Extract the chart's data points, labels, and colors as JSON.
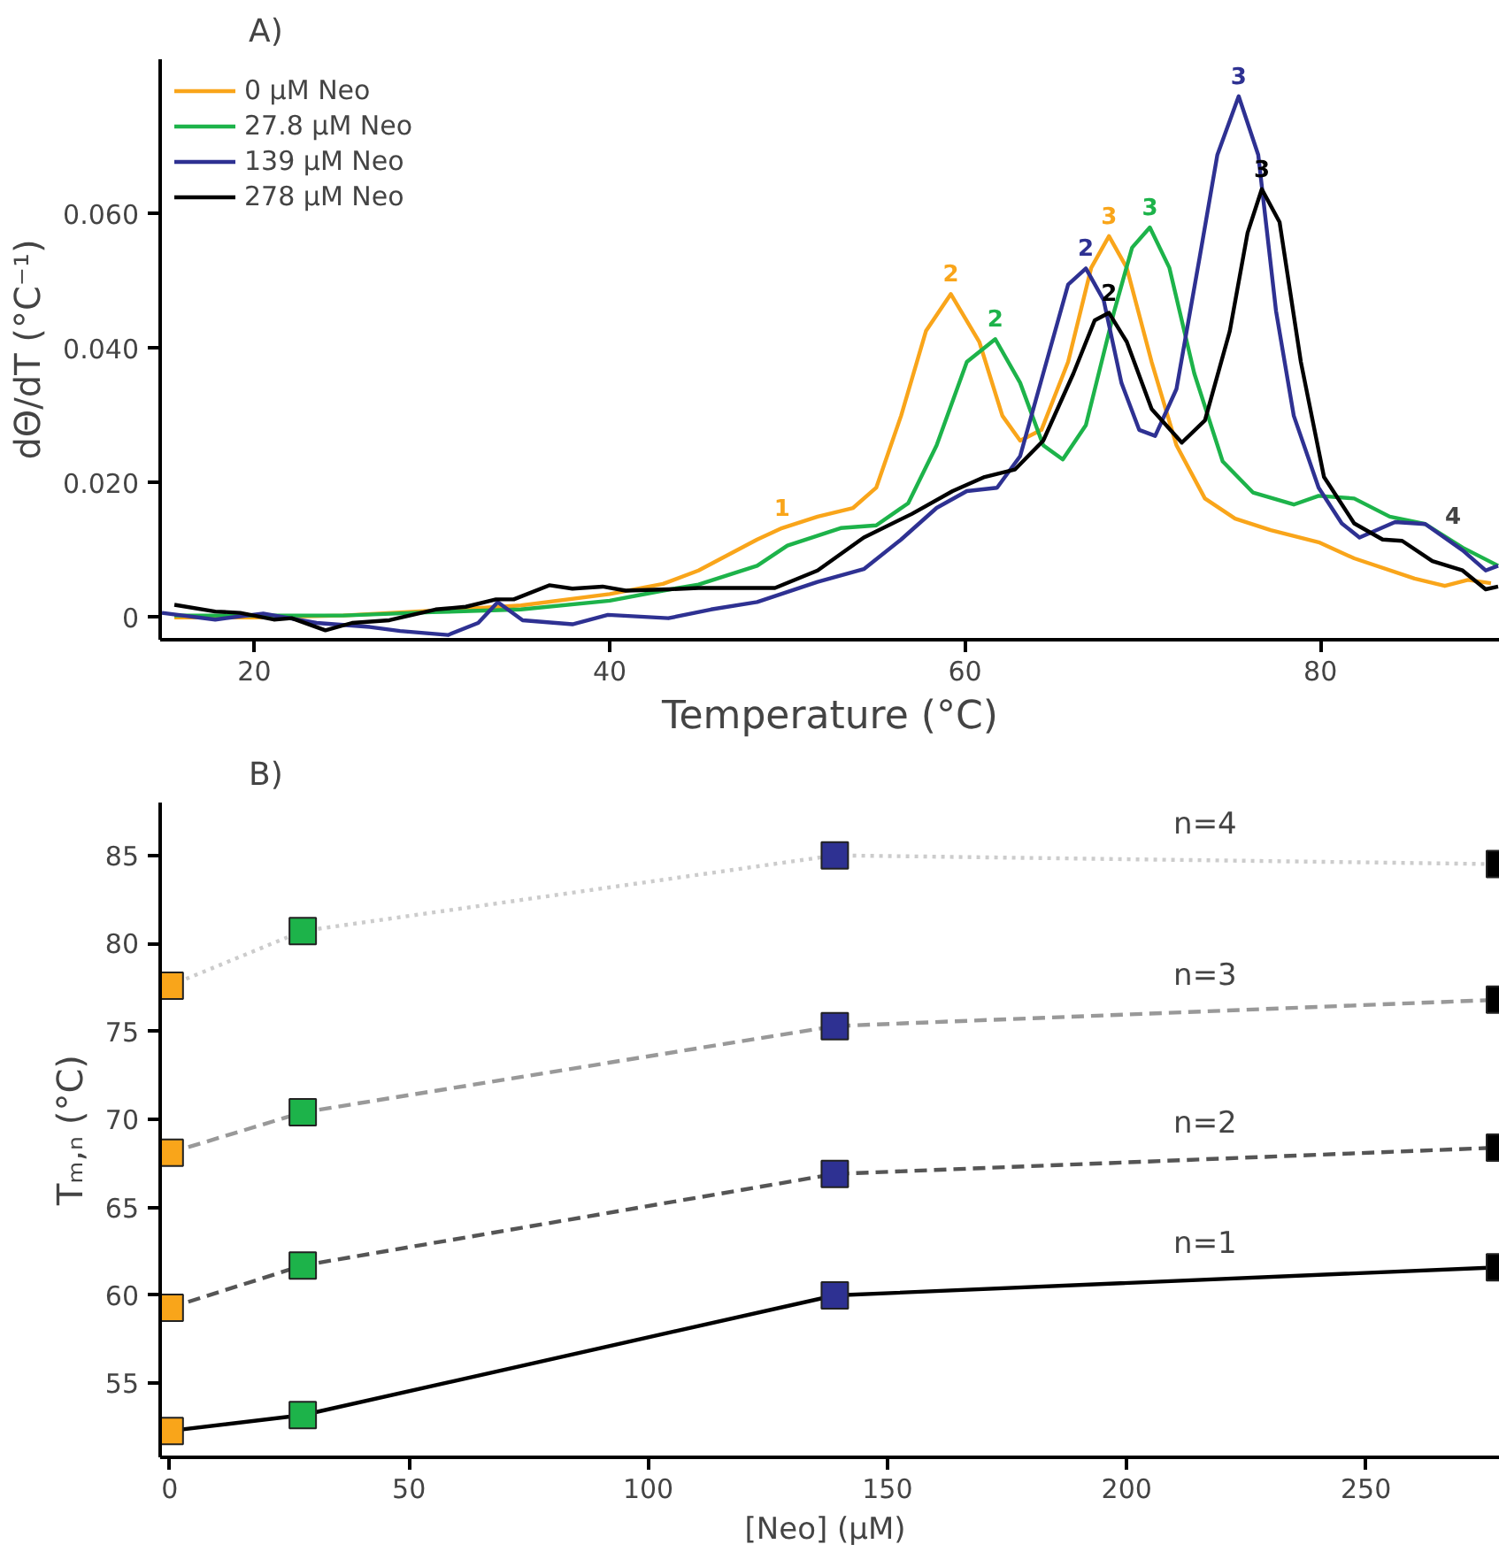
{
  "chart_data": [
    {
      "type": "line",
      "title": "A)",
      "xlabel": "Temperature (°C)",
      "ylabel": "dΘ/dT (°C⁻¹)",
      "xlim": [
        14.7,
        90.1
      ],
      "ylim": [
        -0.0033,
        0.083
      ],
      "xticks": [
        20,
        40,
        60,
        80
      ],
      "yticks": [
        0,
        {
          "value": 0.02,
          "label": "0.020"
        },
        {
          "value": 0.04,
          "label": "0.040"
        },
        {
          "value": 0.06,
          "label": "0.060"
        }
      ],
      "grid": false,
      "legend": "top left",
      "marker": "none",
      "line_style": "solid",
      "annotations": [
        "4",
        {
          "text": "1",
          "x": 49.7,
          "y": 0.0133
        },
        {
          "text": "2",
          "x": 59.2,
          "y": 0.0481
        },
        {
          "text": "3",
          "x": 68.1,
          "y": 0.0567
        },
        {
          "text": "2",
          "x": 61.7,
          "y": 0.0414
        },
        {
          "text": "3",
          "x": 70.4,
          "y": 0.058
        },
        {
          "text": "2",
          "x": 66.8,
          "y": 0.0519
        },
        {
          "text": "3",
          "x": 75.4,
          "y": 0.0775
        },
        {
          "text": "2",
          "x": 68.1,
          "y": 0.0453
        },
        {
          "text": "3",
          "x": 76.7,
          "y": 0.0637
        }
      ],
      "series": [
        {
          "name": "0 μM Neo",
          "color": "#f9a51a",
          "x": [
            15.5,
            20,
            25,
            30,
            35,
            40,
            43,
            45,
            48.3,
            49.7,
            51.7,
            53.7,
            55,
            56.4,
            57.8,
            59.2,
            60.8,
            62.1,
            63.1,
            64.3,
            65.8,
            67.1,
            68.1,
            69.1,
            70.5,
            71.9,
            73.5,
            75.2,
            77.2,
            79.9,
            81.9,
            85.3,
            87.0,
            88.3,
            89.6
          ],
          "values": [
            0,
            0,
            0.0003,
            0.001,
            0.0018,
            0.0035,
            0.005,
            0.007,
            0.0116,
            0.0133,
            0.015,
            0.0163,
            0.0193,
            0.03,
            0.0426,
            0.0481,
            0.041,
            0.03,
            0.0263,
            0.0279,
            0.038,
            0.052,
            0.0567,
            0.052,
            0.038,
            0.0256,
            0.0177,
            0.0147,
            0.013,
            0.0112,
            0.0088,
            0.0058,
            0.0047,
            0.0056,
            0.0051
          ]
        },
        {
          "name": "27.8 μM Neo",
          "color": "#1db34a",
          "x": [
            15.5,
            20,
            25,
            30,
            35,
            40,
            43,
            45,
            48.3,
            50,
            53,
            55,
            56.8,
            58.4,
            60.1,
            61.7,
            63.1,
            64.4,
            65.5,
            66.8,
            68.4,
            69.4,
            70.4,
            71.5,
            72.9,
            74.5,
            76.2,
            78.5,
            79.9,
            81.9,
            83.9,
            85.9,
            88.0,
            90.0
          ],
          "values": [
            0.0003,
            0.0003,
            0.0003,
            0.0008,
            0.0012,
            0.0025,
            0.004,
            0.0049,
            0.0077,
            0.0107,
            0.0133,
            0.0137,
            0.017,
            0.0256,
            0.038,
            0.0414,
            0.0349,
            0.0256,
            0.0235,
            0.0286,
            0.0456,
            0.055,
            0.058,
            0.052,
            0.0363,
            0.0232,
            0.0186,
            0.0168,
            0.0181,
            0.0177,
            0.015,
            0.0139,
            0.0104,
            0.0077
          ]
        },
        {
          "name": "139 μM Neo",
          "color": "#2e3192",
          "x": [
            14.8,
            17.8,
            20.5,
            23.5,
            26.5,
            28.2,
            30.9,
            32.6,
            33.7,
            35.1,
            37.9,
            39.9,
            43.3,
            45.7,
            48.3,
            51.7,
            54.3,
            56.4,
            58.4,
            60.1,
            61.8,
            63.1,
            64.4,
            65.8,
            66.8,
            67.8,
            68.8,
            69.8,
            70.7,
            71.9,
            73.2,
            74.2,
            75.4,
            76.5,
            77.5,
            78.5,
            79.9,
            81.2,
            82.2,
            84.2,
            85.9,
            88.0,
            89.3,
            90.0
          ],
          "values": [
            0.0007,
            -0.0003,
            0.0006,
            -0.0008,
            -0.0014,
            -0.002,
            -0.0026,
            -0.0008,
            0.0023,
            -0.0004,
            -0.001,
            0.0004,
            -0.0001,
            0.0012,
            0.0023,
            0.0053,
            0.0072,
            0.0116,
            0.0163,
            0.0188,
            0.0193,
            0.024,
            0.0363,
            0.0495,
            0.0519,
            0.0472,
            0.0349,
            0.0279,
            0.027,
            0.034,
            0.0535,
            0.0688,
            0.0775,
            0.0688,
            0.0456,
            0.03,
            0.0193,
            0.014,
            0.0119,
            0.0142,
            0.0139,
            0.01,
            0.007,
            0.0077
          ]
        },
        {
          "name": "278 μM Neo",
          "color": "#000000",
          "x": [
            15.5,
            17.8,
            19.2,
            21.1,
            22.1,
            24,
            25.5,
            27.6,
            30.2,
            31.9,
            33.6,
            34.6,
            36.6,
            37.9,
            39.6,
            40.9,
            43.3,
            45,
            49.3,
            51.7,
            54.3,
            57.0,
            59.3,
            61.1,
            62.8,
            64.4,
            66.1,
            67.3,
            68.1,
            69.1,
            70.5,
            72.2,
            73.5,
            74.9,
            75.9,
            76.7,
            77.7,
            78.9,
            80.2,
            81.9,
            83.5,
            84.6,
            86.3,
            88,
            89.3,
            90
          ],
          "values": [
            0.0019,
            0.0009,
            0.0007,
            -0.0003,
            -0.0001,
            -0.0019,
            -0.0008,
            -0.0004,
            0.0012,
            0.0016,
            0.0027,
            0.0027,
            0.0048,
            0.0043,
            0.0046,
            0.004,
            0.0042,
            0.0044,
            0.0044,
            0.007,
            0.0119,
            0.0154,
            0.0188,
            0.0209,
            0.022,
            0.0263,
            0.0363,
            0.0442,
            0.0453,
            0.041,
            0.031,
            0.026,
            0.0293,
            0.0426,
            0.0572,
            0.0637,
            0.0588,
            0.038,
            0.0209,
            0.014,
            0.0116,
            0.0114,
            0.0084,
            0.007,
            0.0042,
            0.0046
          ]
        }
      ]
    },
    {
      "type": "line",
      "title": "B)",
      "xlabel": "[Neo]  (μM)",
      "ylabel": "Tₘ,ₙ (°C)",
      "xlim": [
        -2,
        278
      ],
      "ylim": [
        50.8,
        88
      ],
      "xticks": [
        0,
        50,
        100,
        150,
        200,
        250
      ],
      "yticks": [
        55,
        60,
        65,
        70,
        75,
        80,
        85
      ],
      "grid": false,
      "legend": false,
      "marker": "square",
      "series": [
        {
          "name": "n=1",
          "color": "#000000",
          "line_style": "solid",
          "x": [
            0,
            27.8,
            139,
            278
          ],
          "values": [
            52.3,
            53.2,
            60.0,
            61.6
          ],
          "colors": [
            "#f9a51a",
            "#1db34a",
            "#2e3192",
            "#000000"
          ]
        },
        {
          "name": "n=2",
          "color": "#555555",
          "line_style": "dashed",
          "x": [
            0,
            27.8,
            139,
            278
          ],
          "values": [
            59.3,
            61.7,
            66.9,
            68.4
          ],
          "colors": [
            "#f9a51a",
            "#1db34a",
            "#2e3192",
            "#000000"
          ]
        },
        {
          "name": "n=3",
          "color": "#999999",
          "line_style": "dashed",
          "x": [
            0,
            27.8,
            139,
            278
          ],
          "values": [
            68.1,
            70.4,
            75.3,
            76.8
          ],
          "colors": [
            "#f9a51a",
            "#1db34a",
            "#2e3192",
            "#000000"
          ]
        },
        {
          "name": "n=4",
          "color": "#cccccc",
          "line_style": "dotted",
          "x": [
            0,
            27.8,
            139,
            278
          ],
          "values": [
            77.6,
            80.7,
            85.0,
            84.5
          ],
          "colors": [
            "#f9a51a",
            "#1db34a",
            "#2e3192",
            "#000000"
          ]
        }
      ]
    }
  ]
}
